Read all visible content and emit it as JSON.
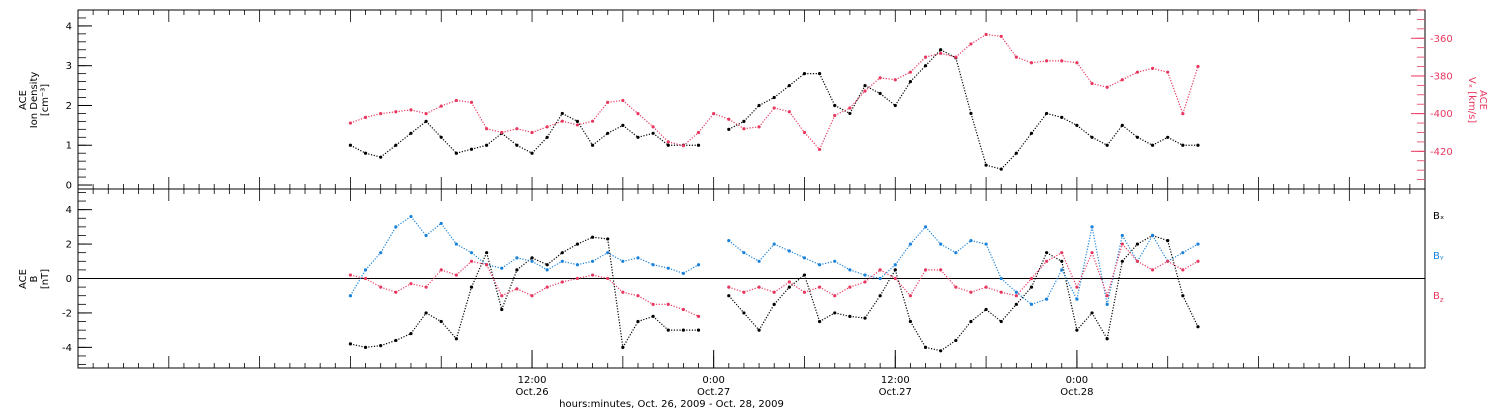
{
  "chart_data": [
    {
      "type": "scatter",
      "panel": "top",
      "ylabel": [
        "ACE",
        "Ion Density",
        "[cm⁻³]"
      ],
      "ylabel_right": [
        "ACE",
        "Vₓ [km/s]"
      ],
      "ylim": [
        -0.1,
        4.4
      ],
      "ylim_right": [
        -440,
        -345
      ],
      "yticks": [
        0,
        1,
        2,
        3,
        4
      ],
      "yticks_right": [
        -360,
        -380,
        -400,
        -420
      ],
      "series": [
        {
          "name": "Ion Density",
          "color": "#000000",
          "x": [
            0.0,
            1.0,
            2.0,
            3.0,
            4.0,
            5.0,
            6.0,
            7.0,
            8.0,
            9.0,
            10.0,
            11.0,
            12.0,
            13.0,
            14.0,
            15.0,
            16.0,
            17.0,
            18.0,
            19.0,
            20.0,
            21.0,
            22.0,
            23.0,
            24.0,
            25.0,
            26.0,
            27.0,
            28.0,
            29.0,
            30.0,
            31.0,
            32.0,
            33.0,
            34.0,
            35.0,
            36.0,
            37.0,
            38.0,
            39.0,
            40.0,
            41.0,
            42.0,
            43.0,
            44.0,
            45.0,
            46.0,
            47.0,
            48.0,
            49.0,
            50.0,
            51.0,
            52.0,
            53.0,
            54.0,
            55.0,
            56.0
          ],
          "values": [
            1.0,
            0.8,
            0.7,
            1.0,
            1.3,
            1.6,
            1.2,
            0.8,
            0.9,
            1.0,
            1.3,
            1.0,
            0.8,
            1.2,
            1.8,
            1.6,
            1.0,
            1.3,
            1.5,
            1.2,
            1.3,
            1.0,
            1.0,
            1.0,
            null,
            1.4,
            1.6,
            2.0,
            2.2,
            2.5,
            2.8,
            2.8,
            2.0,
            1.8,
            2.5,
            2.3,
            2.0,
            2.6,
            3.0,
            3.4,
            3.2,
            1.8,
            0.5,
            0.4,
            0.8,
            1.3,
            1.8,
            1.7,
            1.5,
            1.2,
            1.0,
            1.5,
            1.2,
            1.0,
            1.2,
            1.0,
            1.0
          ]
        },
        {
          "name": "Vₓ",
          "axis": "right",
          "color": "#e8385f",
          "x": [
            0.0,
            1.0,
            2.0,
            3.0,
            4.0,
            5.0,
            6.0,
            7.0,
            8.0,
            9.0,
            10.0,
            11.0,
            12.0,
            13.0,
            14.0,
            15.0,
            16.0,
            17.0,
            18.0,
            19.0,
            20.0,
            21.0,
            22.0,
            23.0,
            24.0,
            25.0,
            26.0,
            27.0,
            28.0,
            29.0,
            30.0,
            31.0,
            32.0,
            33.0,
            34.0,
            35.0,
            36.0,
            37.0,
            38.0,
            39.0,
            40.0,
            41.0,
            42.0,
            43.0,
            44.0,
            45.0,
            46.0,
            47.0,
            48.0,
            49.0,
            50.0,
            51.0,
            52.0,
            53.0,
            54.0,
            55.0,
            56.0
          ],
          "values": [
            -405,
            -402,
            -400,
            -399,
            -398,
            -400,
            -396,
            -393,
            -394,
            -408,
            -410,
            -408,
            -410,
            -407,
            -404,
            -406,
            -404,
            -394,
            -393,
            -400,
            -407,
            -415,
            -417,
            -410,
            -400,
            -403,
            -408,
            -407,
            -397,
            -399,
            -410,
            -419,
            -401,
            -397,
            -388,
            -381,
            -382,
            -378,
            -370,
            -368,
            -370,
            -363,
            -358,
            -359,
            -370,
            -373,
            -372,
            -372,
            -373,
            -384,
            -386,
            -382,
            -378,
            -376,
            -378,
            -400,
            -375
          ]
        }
      ]
    },
    {
      "type": "scatter",
      "panel": "bottom",
      "ylabel": [
        "ACE",
        "B",
        "[nT]"
      ],
      "ylim": [
        -5.2,
        5.2
      ],
      "yticks": [
        -4,
        -2,
        0,
        2,
        4
      ],
      "xlabel": "hours:minutes, Oct. 26, 2009 - Oct. 28, 2009",
      "xlim": [
        -18.0,
        71.0
      ],
      "x_ticks": [
        {
          "x": 12,
          "time": "12:00",
          "date": "Oct.26"
        },
        {
          "x": 24,
          "time": "0:00",
          "date": "Oct.27"
        },
        {
          "x": 36,
          "time": "12:00",
          "date": "Oct.27"
        },
        {
          "x": 48,
          "time": "0:00",
          "date": "Oct.28"
        }
      ],
      "series": [
        {
          "name": "Bₓ",
          "color": "#000000",
          "x": [
            0.0,
            1.0,
            2.0,
            3.0,
            4.0,
            5.0,
            6.0,
            7.0,
            8.0,
            9.0,
            10.0,
            11.0,
            12.0,
            13.0,
            14.0,
            15.0,
            16.0,
            17.0,
            18.0,
            19.0,
            20.0,
            21.0,
            22.0,
            23.0,
            24.0,
            25.0,
            26.0,
            27.0,
            28.0,
            29.0,
            30.0,
            31.0,
            32.0,
            33.0,
            34.0,
            35.0,
            36.0,
            37.0,
            38.0,
            39.0,
            40.0,
            41.0,
            42.0,
            43.0,
            44.0,
            45.0,
            46.0,
            47.0,
            48.0,
            49.0,
            50.0,
            51.0,
            52.0,
            53.0,
            54.0,
            55.0,
            56.0
          ],
          "values": [
            -3.8,
            -4.0,
            -3.9,
            -3.6,
            -3.2,
            -2.0,
            -2.5,
            -3.5,
            -0.5,
            1.5,
            -1.8,
            0.5,
            1.2,
            0.8,
            1.5,
            2.0,
            2.4,
            2.3,
            -4.0,
            -2.5,
            -2.2,
            -3.0,
            -3.0,
            -3.0,
            null,
            -1.0,
            -2.0,
            -3.0,
            -1.5,
            -0.5,
            0.2,
            -2.5,
            -2.0,
            -2.2,
            -2.3,
            -1.0,
            0.5,
            -2.5,
            -4.0,
            -4.2,
            -3.6,
            -2.5,
            -1.8,
            -2.5,
            -1.5,
            -0.5,
            1.5,
            1.0,
            -3.0,
            -2.0,
            -3.5,
            1.0,
            2.0,
            2.5,
            2.2,
            -1.0,
            -2.8
          ]
        },
        {
          "name": "Bᵧ",
          "color": "#1a82d8",
          "x": [
            0.0,
            1.0,
            2.0,
            3.0,
            4.0,
            5.0,
            6.0,
            7.0,
            8.0,
            9.0,
            10.0,
            11.0,
            12.0,
            13.0,
            14.0,
            15.0,
            16.0,
            17.0,
            18.0,
            19.0,
            20.0,
            21.0,
            22.0,
            23.0,
            24.0,
            25.0,
            26.0,
            27.0,
            28.0,
            29.0,
            30.0,
            31.0,
            32.0,
            33.0,
            34.0,
            35.0,
            36.0,
            37.0,
            38.0,
            39.0,
            40.0,
            41.0,
            42.0,
            43.0,
            44.0,
            45.0,
            46.0,
            47.0,
            48.0,
            49.0,
            50.0,
            51.0,
            52.0,
            53.0,
            54.0,
            55.0,
            56.0
          ],
          "values": [
            -1.0,
            0.5,
            1.5,
            3.0,
            3.6,
            2.5,
            3.2,
            2.0,
            1.5,
            0.8,
            0.6,
            1.2,
            1.0,
            0.5,
            1.0,
            0.8,
            1.0,
            1.5,
            1.0,
            1.2,
            0.8,
            0.6,
            0.3,
            0.8,
            null,
            2.2,
            1.5,
            1.0,
            2.0,
            1.6,
            1.2,
            0.8,
            1.0,
            0.5,
            0.2,
            0.0,
            0.8,
            2.0,
            3.0,
            2.0,
            1.5,
            2.2,
            2.0,
            0.0,
            -0.8,
            -1.5,
            -1.2,
            0.5,
            -1.2,
            3.0,
            -1.5,
            2.5,
            1.0,
            2.5,
            1.0,
            1.5,
            2.0
          ]
        },
        {
          "name": "B_z",
          "color": "#e8385f",
          "x": [
            0.0,
            1.0,
            2.0,
            3.0,
            4.0,
            5.0,
            6.0,
            7.0,
            8.0,
            9.0,
            10.0,
            11.0,
            12.0,
            13.0,
            14.0,
            15.0,
            16.0,
            17.0,
            18.0,
            19.0,
            20.0,
            21.0,
            22.0,
            23.0,
            24.0,
            25.0,
            26.0,
            27.0,
            28.0,
            29.0,
            30.0,
            31.0,
            32.0,
            33.0,
            34.0,
            35.0,
            36.0,
            37.0,
            38.0,
            39.0,
            40.0,
            41.0,
            42.0,
            43.0,
            44.0,
            45.0,
            46.0,
            47.0,
            48.0,
            49.0,
            50.0,
            51.0,
            52.0,
            53.0,
            54.0,
            55.0,
            56.0
          ],
          "values": [
            0.2,
            0.0,
            -0.5,
            -0.8,
            -0.3,
            -0.5,
            0.5,
            0.2,
            1.0,
            0.8,
            -1.0,
            -0.6,
            -1.0,
            -0.5,
            -0.2,
            0.0,
            0.2,
            0.0,
            -0.8,
            -1.0,
            -1.5,
            -1.5,
            -1.8,
            -2.2,
            null,
            -0.5,
            -0.8,
            -0.5,
            -0.8,
            -0.2,
            -0.8,
            -0.5,
            -1.0,
            -0.5,
            -0.2,
            0.5,
            0.0,
            -1.0,
            0.5,
            0.5,
            -0.5,
            -0.8,
            -0.5,
            -0.8,
            -1.0,
            0.0,
            1.0,
            1.5,
            -0.5,
            1.5,
            -1.0,
            2.0,
            1.0,
            0.5,
            1.0,
            0.5,
            1.0
          ]
        }
      ],
      "legend": [
        {
          "label": "Bₓ",
          "color": "#000000"
        },
        {
          "label": "Bᵧ",
          "color": "#1a82d8"
        },
        {
          "label": "B_z",
          "color": "#e8385f"
        }
      ]
    }
  ]
}
